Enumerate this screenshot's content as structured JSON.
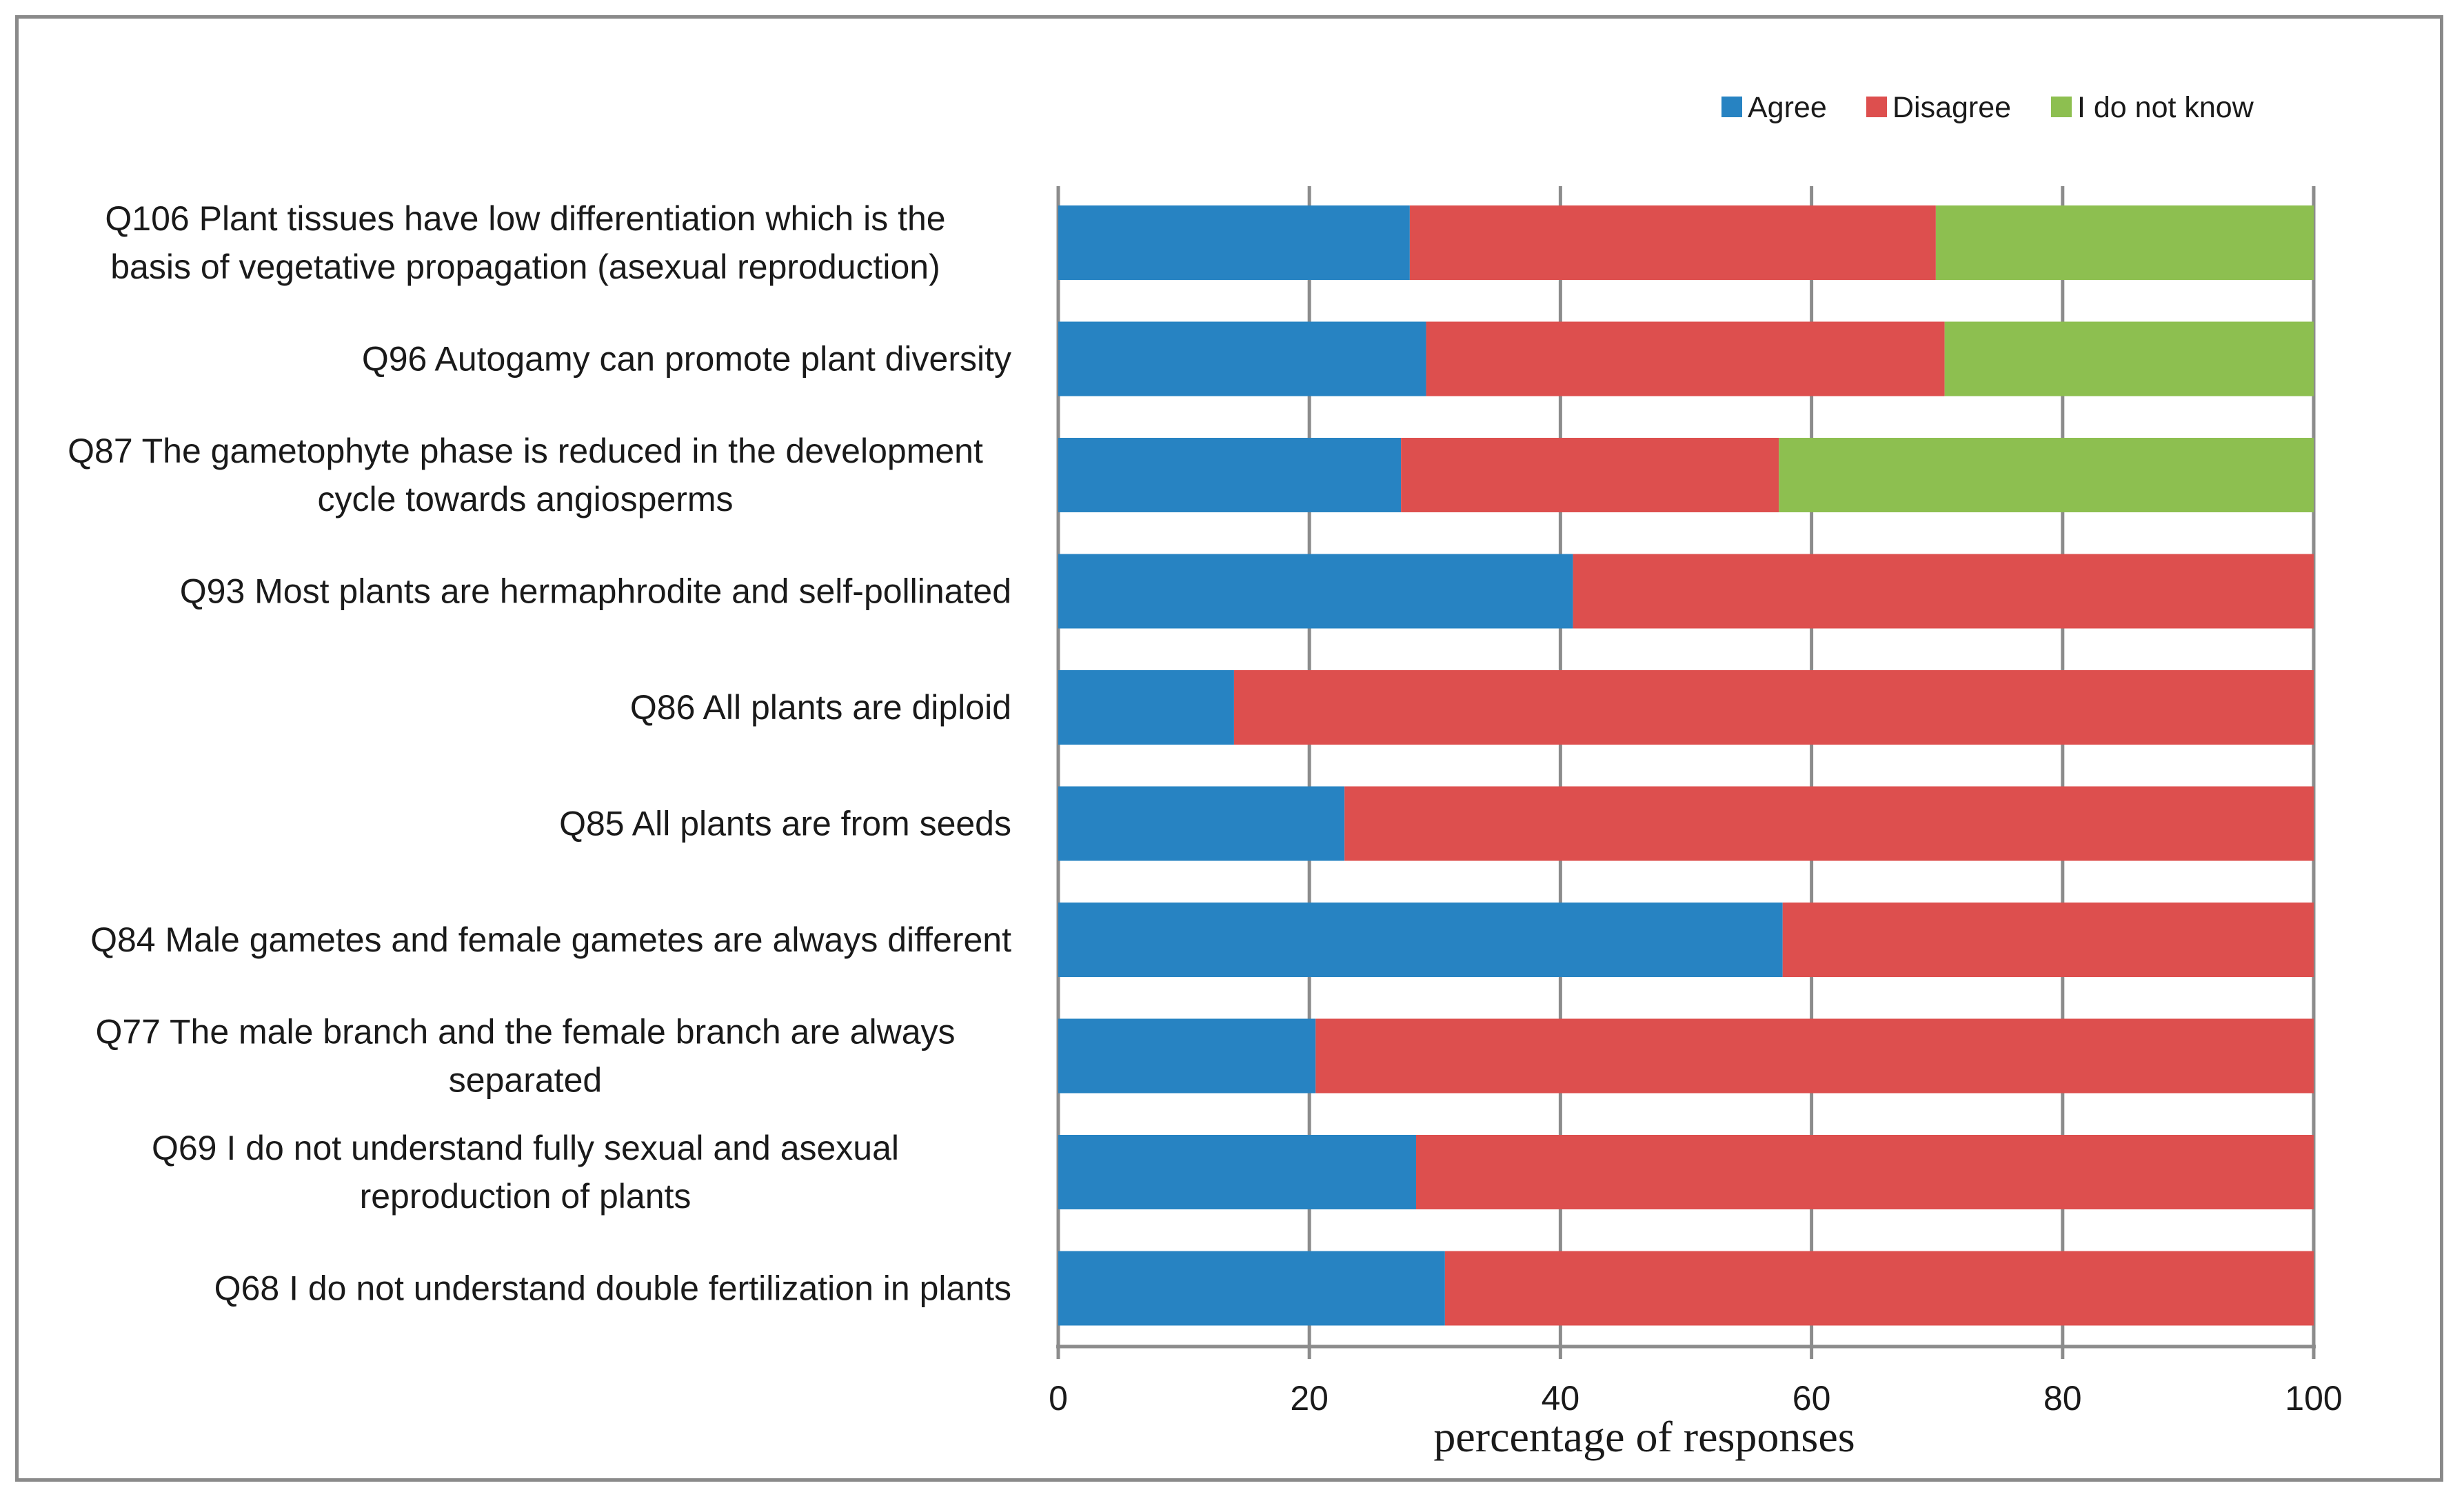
{
  "chart_data": {
    "type": "bar",
    "orientation": "horizontal",
    "stacked": true,
    "title": "",
    "xlabel": "percentage of responses",
    "ylabel": "",
    "xlim": [
      0,
      100
    ],
    "xticks": [
      0,
      20,
      40,
      60,
      80,
      100
    ],
    "grid": "vertical",
    "legend_position": "top-right",
    "categories": [
      "Q106 Plant tissues have low differentiation which is the basis of vegetative propagation (asexual reproduction)",
      "Q96 Autogamy can promote plant diversity",
      "Q87 The gametophyte phase is reduced in the development cycle towards angiosperms",
      "Q93 Most plants are hermaphrodite and self-pollinated",
      "Q86 All plants are diploid",
      "Q85 All plants are from seeds",
      "Q84 Male gametes and female gametes are always different",
      "Q77 The male branch and the female branch are always separated",
      "Q69 I do not understand fully sexual and asexual reproduction of plants",
      "Q68 I do not understand double fertilization in plants"
    ],
    "category_lines": [
      [
        "Q106 Plant tissues have low differentiation which is the",
        "basis of vegetative propagation (asexual reproduction)"
      ],
      [
        "Q96 Autogamy can promote plant diversity"
      ],
      [
        "Q87 The gametophyte phase is reduced in the development",
        "cycle towards angiosperms"
      ],
      [
        "Q93 Most plants are hermaphrodite and self-pollinated"
      ],
      [
        "Q86 All plants are diploid"
      ],
      [
        "Q85 All plants are from seeds"
      ],
      [
        "Q84 Male gametes and female gametes are always different"
      ],
      [
        "Q77 The male branch and the female branch are always",
        "separated"
      ],
      [
        "Q69 I do not understand fully sexual and asexual",
        "reproduction of plants"
      ],
      [
        "Q68 I do not understand double fertilization in plants"
      ]
    ],
    "series": [
      {
        "name": "Agree",
        "color": "#2783c2",
        "values": [
          28,
          29.3,
          27.3,
          41,
          14,
          22.8,
          57.7,
          20.5,
          28.5,
          30.8
        ]
      },
      {
        "name": "Disagree",
        "color": "#dd4f4e",
        "values": [
          41.9,
          41.3,
          30.1,
          59,
          86,
          77.2,
          42.3,
          79.5,
          71.5,
          69.2
        ]
      },
      {
        "name": "I do not know",
        "color": "#8dbf50",
        "values": [
          30.1,
          29.4,
          42.6,
          0,
          0,
          0,
          0,
          0,
          0,
          0
        ]
      }
    ]
  }
}
